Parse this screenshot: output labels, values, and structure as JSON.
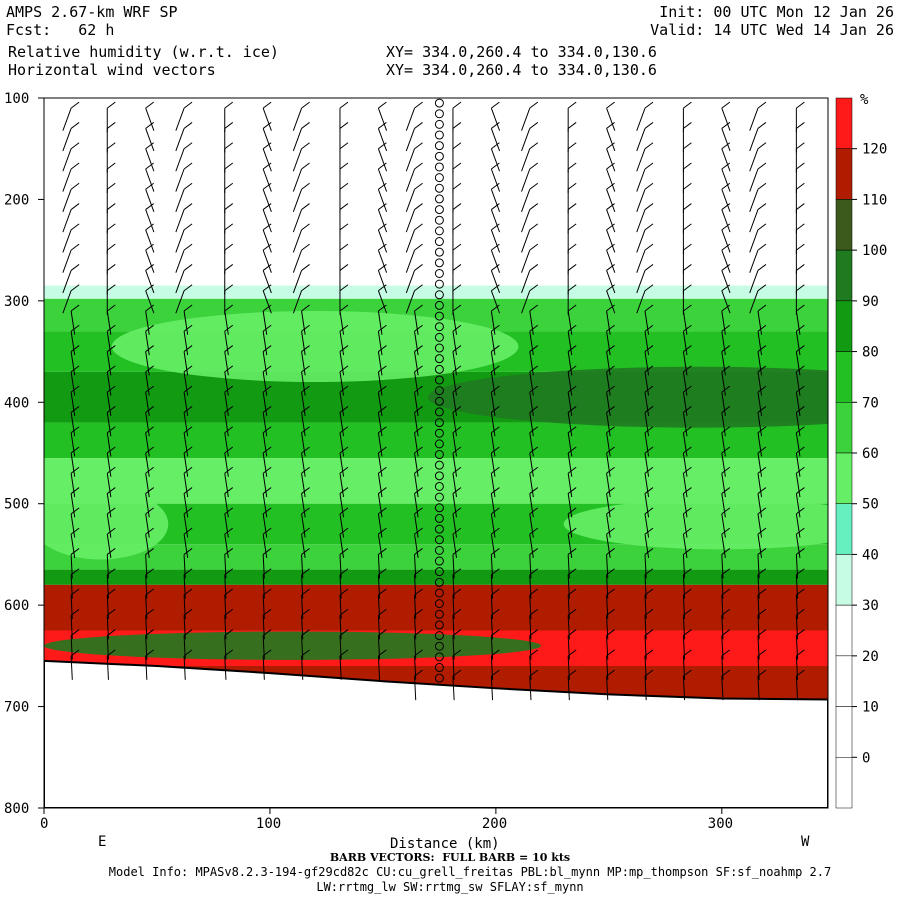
{
  "header": {
    "model": "AMPS 2.67-km WRF SP",
    "fcst_label": "Fcst:",
    "fcst_value": "62 h",
    "field1": "Relative humidity (w.r.t. ice)",
    "field2": "Horizontal wind vectors",
    "init": "Init: 00 UTC Mon 12 Jan 26",
    "valid": "Valid: 14 UTC Wed 14 Jan 26",
    "xy1": "XY= 334.0,260.4 to 334.0,130.6",
    "xy2": "XY= 334.0,260.4 to 334.0,130.6"
  },
  "chart_data": {
    "type": "heatmap",
    "title": "Relative humidity (w.r.t. ice)",
    "xlabel": "Distance (km)",
    "x_ticks": [
      0,
      100,
      200,
      300
    ],
    "xlim": [
      0,
      347
    ],
    "ylim": [
      800,
      100
    ],
    "y_ticks": [
      100,
      200,
      300,
      400,
      500,
      600,
      700,
      800
    ],
    "x_end_labels": [
      "E",
      "W"
    ],
    "colorbar": {
      "unit": "%",
      "levels": [
        0,
        10,
        20,
        30,
        40,
        50,
        60,
        70,
        80,
        90,
        100,
        110,
        120
      ],
      "colors": [
        "#ffffff",
        "#ffffff",
        "#ffffff",
        "#ffffff",
        "#c6fce4",
        "#66f0c0",
        "#66ee66",
        "#3cd23c",
        "#22c022",
        "#129a12",
        "#207a20",
        "#3c5a1c",
        "#b01c00",
        "#ff1a1a"
      ]
    },
    "bands": [
      {
        "top": 285,
        "bottom": 298,
        "value": 35
      },
      {
        "top": 298,
        "bottom": 330,
        "value": 65
      },
      {
        "top": 330,
        "bottom": 370,
        "value": 75
      },
      {
        "top": 370,
        "bottom": 420,
        "value": 85
      },
      {
        "top": 420,
        "bottom": 455,
        "value": 75
      },
      {
        "top": 455,
        "bottom": 500,
        "value": 55
      },
      {
        "top": 500,
        "bottom": 540,
        "value": 75
      },
      {
        "top": 540,
        "bottom": 565,
        "value": 65
      },
      {
        "top": 565,
        "bottom": 580,
        "value": 85
      },
      {
        "top": 580,
        "bottom": 625,
        "value": 115
      },
      {
        "top": 625,
        "bottom": 660,
        "value": 125
      },
      {
        "top": 660,
        "bottom": 700,
        "value": 115
      }
    ],
    "patches": [
      {
        "cx": 120,
        "cy": 345,
        "rx": 90,
        "ry": 35,
        "value": 55
      },
      {
        "cx": 290,
        "cy": 395,
        "rx": 120,
        "ry": 30,
        "value": 95
      },
      {
        "cx": 300,
        "cy": 520,
        "rx": 70,
        "ry": 25,
        "value": 55
      },
      {
        "cx": 25,
        "cy": 520,
        "rx": 30,
        "ry": 35,
        "value": 55
      },
      {
        "cx": 110,
        "cy": 640,
        "rx": 110,
        "ry": 14,
        "value": 95
      }
    ],
    "terrain_pressure": [
      [
        0,
        655
      ],
      [
        50,
        660
      ],
      [
        100,
        667
      ],
      [
        150,
        675
      ],
      [
        200,
        682
      ],
      [
        250,
        688
      ],
      [
        300,
        692
      ],
      [
        347,
        693
      ]
    ],
    "wind_barb_x": [
      12,
      28,
      45,
      62,
      80,
      97,
      114,
      131,
      148,
      164,
      181,
      198,
      215,
      232,
      249,
      266,
      283,
      300,
      316,
      333
    ],
    "calm_column_x": 175,
    "footer": {
      "barb_note": "BARB VECTORS:  FULL BARB = 10 kts",
      "model_info": "Model Info: MPASv8.2.3-194-gf29cd82c CU:cu_grell_freitas PBL:bl_mynn MP:mp_thompson SF:sf_noahmp 2.7",
      "model_info2": "LW:rrtmg_lw SW:rrtmg_sw SFLAY:sf_mynn"
    }
  }
}
